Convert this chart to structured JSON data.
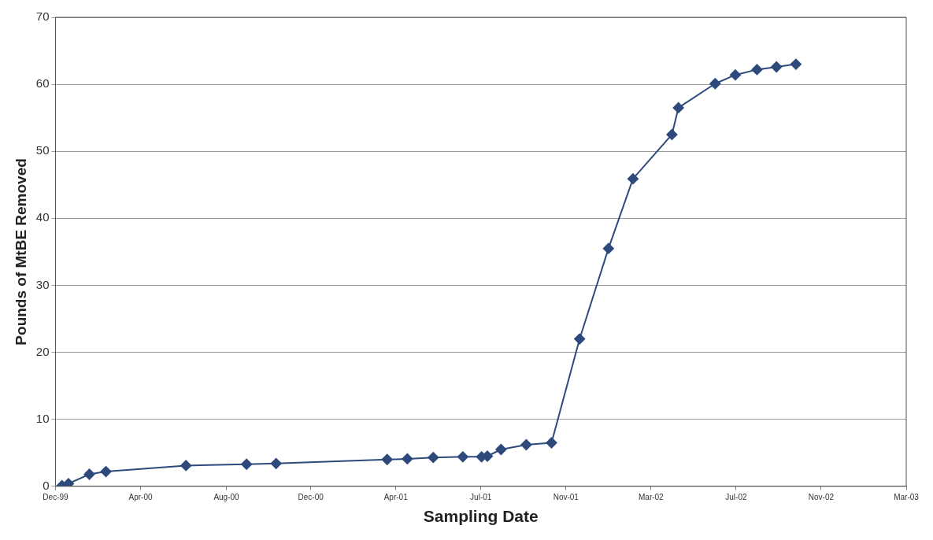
{
  "chart_data": {
    "type": "line",
    "xlabel": "Sampling Date",
    "ylabel": "Pounds of MtBE Removed",
    "x": [
      "1999-12-27",
      "2000-01-05",
      "2000-02-03",
      "2000-02-26",
      "2000-06-16",
      "2000-09-08",
      "2000-10-19",
      "2001-03-22",
      "2001-04-19",
      "2001-05-25",
      "2001-07-05",
      "2001-07-31",
      "2001-08-08",
      "2001-08-27",
      "2001-10-01",
      "2001-11-05",
      "2001-12-14",
      "2002-01-23",
      "2002-02-26",
      "2002-04-21",
      "2002-04-30",
      "2002-06-20",
      "2002-07-18",
      "2002-08-17",
      "2002-09-13",
      "2002-10-10"
    ],
    "series": [
      {
        "color": "#2e4a7d",
        "values": [
          0.1,
          0.4,
          1.8,
          2.2,
          3.1,
          3.3,
          3.4,
          4.0,
          4.1,
          4.3,
          4.4,
          4.4,
          4.5,
          5.5,
          6.2,
          6.5,
          22.0,
          35.5,
          45.9,
          52.5,
          56.5,
          60.1,
          61.4,
          62.2,
          62.6,
          63.0
        ]
      }
    ],
    "xlim": [
      "1999-12-18",
      "2003-03-12"
    ],
    "xticks": [
      {
        "value": "1999-12-18",
        "label": "Dec-99"
      },
      {
        "value": "2000-04-14",
        "label": "Apr-00"
      },
      {
        "value": "2000-08-11",
        "label": "Aug-00"
      },
      {
        "value": "2000-12-06",
        "label": "Dec-00"
      },
      {
        "value": "2001-04-03",
        "label": "Apr-01"
      },
      {
        "value": "2001-07-30",
        "label": "Jul-01"
      },
      {
        "value": "2001-11-25",
        "label": "Nov-01"
      },
      {
        "value": "2002-03-23",
        "label": "Mar-02"
      },
      {
        "value": "2002-07-19",
        "label": "Jul-02"
      },
      {
        "value": "2002-11-14",
        "label": "Nov-02"
      },
      {
        "value": "2003-03-12",
        "label": "Mar-03"
      }
    ],
    "ylim": [
      0,
      70
    ],
    "yticks": [
      0,
      10,
      20,
      30,
      40,
      50,
      60,
      70
    ],
    "grid": "y",
    "legend": false,
    "marker": "diamond",
    "line_style": "solid"
  }
}
